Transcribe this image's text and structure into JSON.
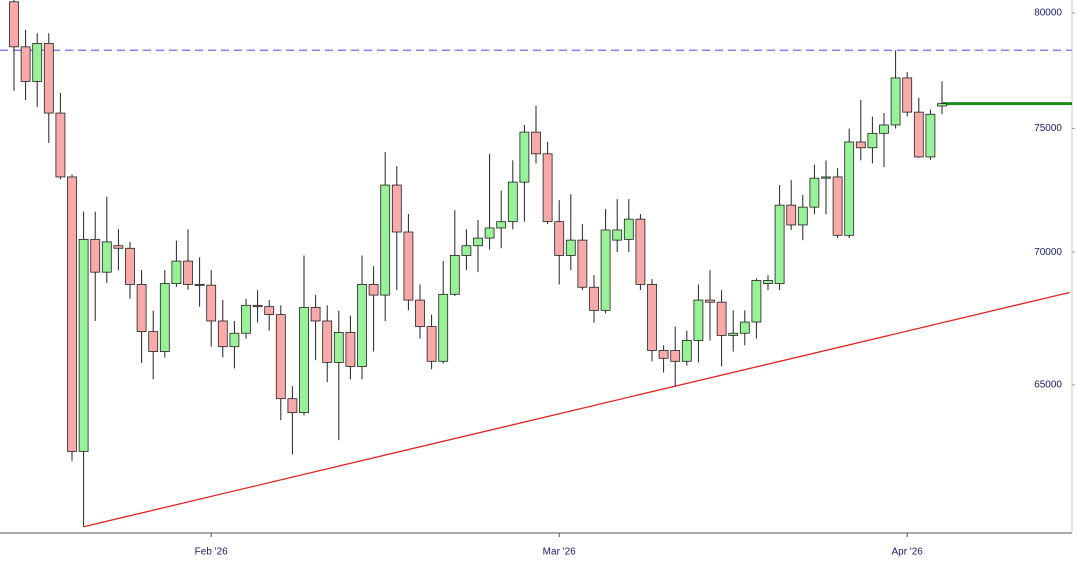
{
  "chart_data": {
    "type": "candlestick",
    "log_scale": true,
    "categories": [
      null,
      null,
      null,
      null,
      null,
      null,
      null,
      null,
      null,
      null,
      null,
      null,
      null,
      null,
      null,
      null,
      null,
      "Feb '26",
      null,
      null,
      null,
      null,
      null,
      null,
      null,
      null,
      null,
      null,
      null,
      null,
      null,
      null,
      null,
      null,
      null,
      null,
      null,
      null,
      null,
      null,
      null,
      null,
      null,
      null,
      null,
      null,
      null,
      "Mar '26",
      null,
      null,
      null,
      null,
      null,
      null,
      null,
      null,
      null,
      null,
      null,
      null,
      null,
      null,
      null,
      null,
      null,
      null,
      null,
      null,
      null,
      null,
      null,
      null,
      null,
      null,
      null,
      null,
      null,
      "Apr '26",
      null,
      null,
      null
    ],
    "open": [
      80500,
      78500,
      77000,
      78650,
      75650,
      73000,
      62630,
      70500,
      69220,
      70250,
      70150,
      68750,
      66960,
      66220,
      68780,
      69650,
      68750,
      68720,
      67360,
      66400,
      66900,
      67950,
      67900,
      67600,
      64500,
      64000,
      67870,
      67360,
      65820,
      66930,
      65670,
      68750,
      68340,
      72670,
      70790,
      68150,
      67150,
      65860,
      68370,
      69870,
      70250,
      70550,
      70950,
      71200,
      72790,
      74850,
      73950,
      71200,
      69870,
      70470,
      68640,
      67760,
      70470,
      70500,
      71300,
      68750,
      66260,
      66260,
      65860,
      66630,
      68150,
      68070,
      66820,
      66900,
      67320,
      68780,
      68780,
      71860,
      71070,
      71780,
      72950,
      73000,
      70660,
      74440,
      74200,
      74800,
      75150,
      77150,
      75690,
      73820,
      75950
    ],
    "high": [
      80600,
      79250,
      79100,
      79100,
      76500,
      73100,
      71600,
      71600,
      72200,
      70900,
      70400,
      69300,
      67750,
      69300,
      70450,
      70900,
      69800,
      69300,
      68150,
      67360,
      68200,
      68530,
      68150,
      67950,
      64950,
      69870,
      68350,
      67950,
      67750,
      67560,
      69870,
      69450,
      74020,
      73440,
      71500,
      68750,
      67600,
      69650,
      71660,
      70900,
      71260,
      73950,
      72450,
      73680,
      75150,
      75970,
      74450,
      72060,
      72300,
      71100,
      69100,
      71700,
      72100,
      72100,
      71500,
      68950,
      66450,
      67150,
      67000,
      68750,
      69300,
      68530,
      67760,
      67760,
      68980,
      69100,
      72670,
      72870,
      72270,
      73500,
      73680,
      73360,
      75000,
      76200,
      75500,
      75650,
      78350,
      77400,
      76300,
      75800,
      77000
    ],
    "low": [
      76600,
      76200,
      75900,
      74400,
      72900,
      62300,
      60050,
      67360,
      68800,
      69300,
      68200,
      65800,
      65200,
      66000,
      68650,
      68550,
      67900,
      66400,
      66000,
      65600,
      66700,
      67300,
      67000,
      63730,
      62520,
      63900,
      65900,
      65100,
      63020,
      65200,
      65200,
      66220,
      67360,
      68530,
      67760,
      66700,
      65570,
      65780,
      68300,
      69300,
      69220,
      70100,
      70150,
      70900,
      71200,
      73550,
      71100,
      68750,
      69300,
      68530,
      67300,
      67650,
      70000,
      70000,
      68530,
      65860,
      65450,
      64950,
      65700,
      65820,
      66630,
      65670,
      66220,
      66450,
      66700,
      68530,
      68530,
      70870,
      70470,
      71500,
      71500,
      70550,
      70550,
      73680,
      73550,
      73400,
      75000,
      75500,
      73780,
      73700,
      75600
    ],
    "close": [
      78500,
      77000,
      78650,
      75650,
      73000,
      62630,
      70500,
      69220,
      70400,
      70150,
      68750,
      66960,
      66220,
      68780,
      69650,
      68750,
      68720,
      67360,
      66400,
      66900,
      67950,
      67900,
      67600,
      64500,
      64000,
      67870,
      67360,
      65820,
      66930,
      65670,
      68750,
      68340,
      72670,
      70790,
      68150,
      67150,
      65860,
      68370,
      69870,
      70250,
      70550,
      70950,
      71200,
      72790,
      74850,
      73950,
      71200,
      69870,
      70470,
      68640,
      67760,
      70870,
      70870,
      71300,
      68750,
      66260,
      65970,
      65860,
      66630,
      68150,
      68070,
      66820,
      66900,
      67320,
      68900,
      68900,
      71860,
      71070,
      71780,
      72950,
      73000,
      70660,
      74440,
      74200,
      74800,
      75150,
      77150,
      75690,
      73820,
      75600,
      76050
    ],
    "up_color": "#98f098",
    "down_color": "#f8aaaa",
    "ylim": [
      59840,
      80580
    ],
    "yticks": [
      65000,
      70000,
      75000,
      80000
    ],
    "reference_lines": [
      {
        "value": 78350,
        "color": "#6b6bef",
        "style": "dashed"
      },
      {
        "value": 76050,
        "color": "#1a8a1a",
        "style": "solid",
        "from": 80
      }
    ],
    "trendline": {
      "color": "#e02424",
      "points": [
        [
          6,
          60050
        ],
        [
          91,
          68440
        ]
      ]
    }
  }
}
